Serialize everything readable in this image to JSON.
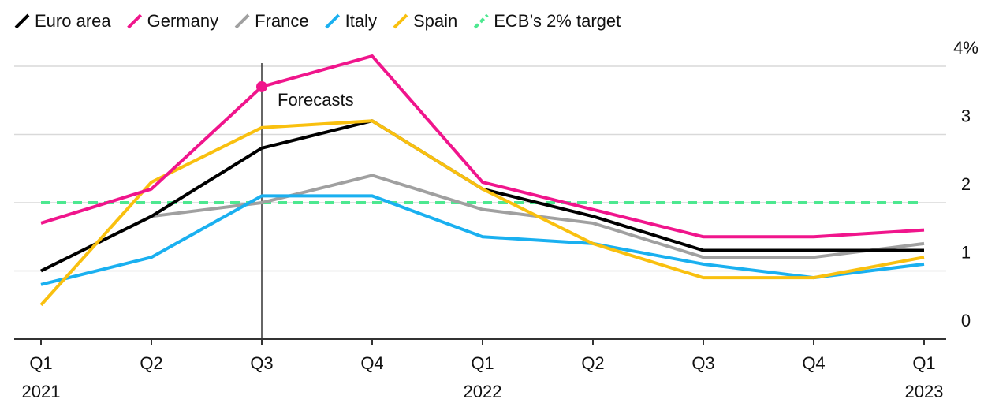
{
  "chart_data": {
    "type": "line",
    "categories": [
      "Q1",
      "Q2",
      "Q3",
      "Q4",
      "Q1",
      "Q2",
      "Q3",
      "Q4",
      "Q1"
    ],
    "years": [
      "2021",
      null,
      null,
      null,
      "2022",
      null,
      null,
      null,
      "2023"
    ],
    "series": [
      {
        "name": "Euro area",
        "color": "#000000",
        "values": [
          1.0,
          1.8,
          2.8,
          3.2,
          2.2,
          1.8,
          1.3,
          1.3,
          1.3
        ]
      },
      {
        "name": "Germany",
        "color": "#f0158c",
        "values": [
          1.7,
          2.2,
          3.7,
          4.15,
          2.3,
          1.9,
          1.5,
          1.5,
          1.6
        ]
      },
      {
        "name": "France",
        "color": "#a0a0a0",
        "values": [
          1.0,
          1.8,
          2.0,
          2.4,
          1.9,
          1.7,
          1.2,
          1.2,
          1.4
        ]
      },
      {
        "name": "Italy",
        "color": "#1ab0f0",
        "values": [
          0.8,
          1.2,
          2.1,
          2.1,
          1.5,
          1.4,
          1.1,
          0.9,
          1.1
        ]
      },
      {
        "name": "Spain",
        "color": "#f9c00f",
        "values": [
          0.5,
          2.3,
          3.1,
          3.2,
          2.2,
          1.4,
          0.9,
          0.9,
          1.2
        ]
      }
    ],
    "target": {
      "name": "ECB’s 2% target",
      "value": 2,
      "color": "#4de890"
    },
    "forecast_start": 2,
    "forecast_label": "Forecasts",
    "forecast_dot_series": 1,
    "ylim": [
      0,
      4.4
    ],
    "yticks": [
      0,
      1,
      2,
      3,
      {
        "value": 4,
        "label": "4%"
      }
    ],
    "grid": true
  }
}
